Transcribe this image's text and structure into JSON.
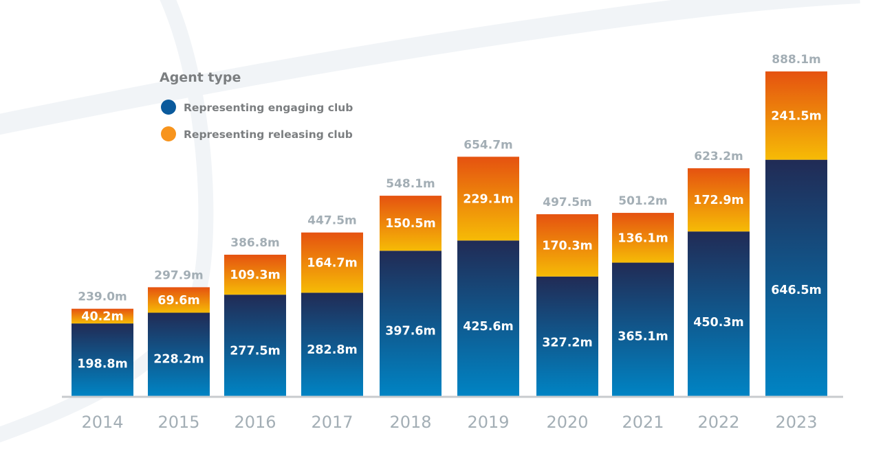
{
  "chart_data": {
    "type": "bar",
    "stacked": true,
    "title": "",
    "xlabel": "",
    "ylabel": "",
    "ylim": [
      0,
      888.1
    ],
    "grid": false,
    "legend": {
      "title": "Agent type",
      "placement": "top-left",
      "entries": [
        {
          "name": "Representing engaging club",
          "color": "#0a5a9c"
        },
        {
          "name": "Representing releasing club",
          "color": "#f7941d"
        }
      ]
    },
    "categories": [
      "2014",
      "2015",
      "2016",
      "2017",
      "2018",
      "2019",
      "2020",
      "2021",
      "2022",
      "2023"
    ],
    "series": [
      {
        "name": "Representing engaging club",
        "values": [
          198.8,
          228.2,
          277.5,
          282.8,
          397.6,
          425.6,
          327.2,
          365.1,
          450.3,
          646.5
        ],
        "labels": [
          "198.8m",
          "228.2m",
          "277.5m",
          "282.8m",
          "397.6m",
          "425.6m",
          "327.2m",
          "365.1m",
          "450.3m",
          "646.5m"
        ],
        "gradient": [
          "#212b55",
          "#0084c4"
        ]
      },
      {
        "name": "Representing releasing club",
        "values": [
          40.2,
          69.6,
          109.3,
          164.7,
          150.5,
          229.1,
          170.3,
          136.1,
          172.9,
          241.5
        ],
        "labels": [
          "40.2m",
          "69.6m",
          "109.3m",
          "164.7m",
          "150.5m",
          "229.1m",
          "170.3m",
          "136.1m",
          "172.9m",
          "241.5m"
        ],
        "gradient": [
          "#f6bb06",
          "#e55210"
        ]
      }
    ],
    "totals": [
      239.0,
      297.9,
      386.8,
      447.5,
      548.1,
      654.7,
      497.5,
      501.2,
      623.2,
      888.1
    ],
    "total_labels": [
      "239.0m",
      "297.9m",
      "386.8m",
      "447.5m",
      "548.1m",
      "654.7m",
      "497.5m",
      "501.2m",
      "623.2m",
      "888.1m"
    ],
    "unit_suffix": "m"
  },
  "colors": {
    "axis": "#c8cbce",
    "background_arc": "#f1f4f7"
  }
}
